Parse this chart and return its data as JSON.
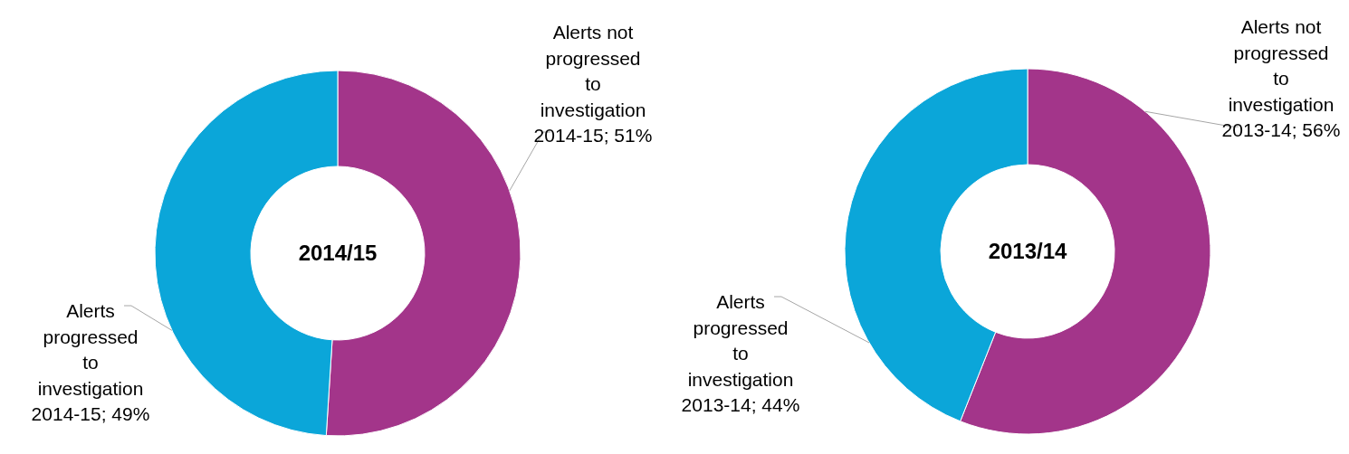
{
  "chart_data": [
    {
      "type": "donut",
      "title": "2014/15",
      "categories": [
        "Alerts not progressed to investigation 2014-15",
        "Alerts progressed to investigation 2014-15"
      ],
      "values": [
        51,
        49
      ],
      "value_labels": [
        "51%",
        "49%"
      ],
      "colors": [
        "#a3358a",
        "#0ba6d9"
      ]
    },
    {
      "type": "donut",
      "title": "2013/14",
      "categories": [
        "Alerts not progressed to investigation 2013-14",
        "Alerts progressed to investigation 2013-14"
      ],
      "values": [
        56,
        44
      ],
      "value_labels": [
        "56%",
        "44%"
      ],
      "colors": [
        "#a3358a",
        "#0ba6d9"
      ]
    }
  ]
}
